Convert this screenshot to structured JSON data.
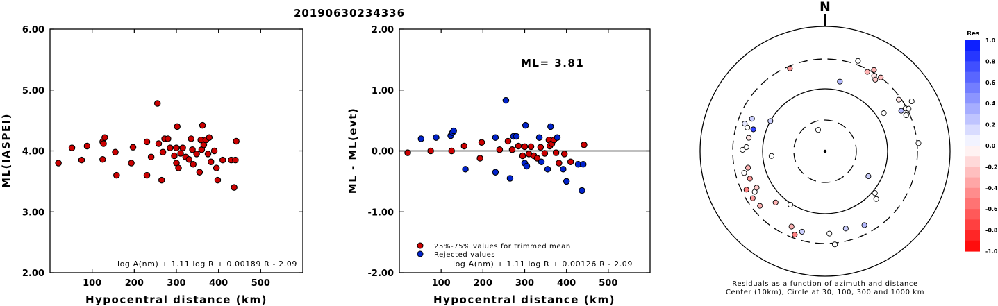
{
  "title": "20190630234336",
  "colors": {
    "accepted": "#cc0000",
    "rejected": "#0022cc"
  },
  "chart_data": [
    {
      "id": "left",
      "type": "scatter",
      "title": "",
      "xlabel": "Hypocentral distance (km)",
      "ylabel": "ML(IASPEI)",
      "xlim": [
        0,
        600
      ],
      "ylim": [
        2.0,
        6.0
      ],
      "xticks": [
        "100",
        "200",
        "300",
        "400",
        "500"
      ],
      "yticks": [
        "2.00",
        "3.00",
        "4.00",
        "5.00",
        "6.00"
      ],
      "formula": "log A(nm) + 1.11 log R + 0.00189 R - 2.09",
      "points": [
        [
          20,
          3.8
        ],
        [
          52,
          4.05
        ],
        [
          75,
          3.85
        ],
        [
          88,
          4.08
        ],
        [
          125,
          4.15
        ],
        [
          127,
          4.12
        ],
        [
          130,
          4.22
        ],
        [
          125,
          3.86
        ],
        [
          155,
          3.98
        ],
        [
          158,
          3.6
        ],
        [
          193,
          3.8
        ],
        [
          197,
          4.06
        ],
        [
          230,
          3.6
        ],
        [
          230,
          4.15
        ],
        [
          240,
          3.9
        ],
        [
          255,
          4.78
        ],
        [
          258,
          4.12
        ],
        [
          265,
          3.52
        ],
        [
          268,
          3.98
        ],
        [
          272,
          4.2
        ],
        [
          280,
          4.2
        ],
        [
          285,
          4.05
        ],
        [
          295,
          3.92
        ],
        [
          300,
          3.8
        ],
        [
          302,
          4.4
        ],
        [
          300,
          4.05
        ],
        [
          305,
          3.72
        ],
        [
          310,
          3.96
        ],
        [
          315,
          4.05
        ],
        [
          322,
          3.9
        ],
        [
          330,
          3.86
        ],
        [
          335,
          4.2
        ],
        [
          338,
          4.02
        ],
        [
          340,
          3.78
        ],
        [
          348,
          3.95
        ],
        [
          355,
          3.65
        ],
        [
          358,
          4.18
        ],
        [
          360,
          4.02
        ],
        [
          362,
          4.42
        ],
        [
          365,
          4.1
        ],
        [
          370,
          4.18
        ],
        [
          375,
          3.95
        ],
        [
          378,
          4.22
        ],
        [
          382,
          3.82
        ],
        [
          390,
          4.0
        ],
        [
          395,
          3.72
        ],
        [
          398,
          3.52
        ],
        [
          410,
          3.85
        ],
        [
          430,
          3.85
        ],
        [
          437,
          3.4
        ],
        [
          440,
          3.85
        ],
        [
          442,
          4.16
        ]
      ]
    },
    {
      "id": "middle",
      "type": "scatter",
      "title": "",
      "xlabel": "Hypocentral distance (km)",
      "ylabel": "ML - ML(evt)",
      "xlim": [
        0,
        600
      ],
      "ylim": [
        -2.0,
        2.0
      ],
      "xticks": [
        "100",
        "200",
        "300",
        "400",
        "500"
      ],
      "yticks": [
        "-2.00",
        "-1.00",
        "0.00",
        "1.00",
        "2.00"
      ],
      "annotation": "ML= 3.81",
      "formula": "log A(nm) + 1.11 log R + 0.00126 R - 2.09",
      "legend": [
        {
          "label": "25%-75% values for trimmed mean",
          "class": "accepted"
        },
        {
          "label": "Rejected values",
          "class": "rejected"
        }
      ],
      "points": [
        {
          "x": 20,
          "y": -0.03,
          "c": "accepted"
        },
        {
          "x": 52,
          "y": 0.2,
          "c": "rejected"
        },
        {
          "x": 75,
          "y": 0.0,
          "c": "accepted"
        },
        {
          "x": 88,
          "y": 0.22,
          "c": "rejected"
        },
        {
          "x": 123,
          "y": 0.25,
          "c": "rejected"
        },
        {
          "x": 127,
          "y": 0.3,
          "c": "rejected"
        },
        {
          "x": 130,
          "y": 0.33,
          "c": "rejected"
        },
        {
          "x": 125,
          "y": 0.0,
          "c": "accepted"
        },
        {
          "x": 155,
          "y": 0.08,
          "c": "accepted"
        },
        {
          "x": 158,
          "y": -0.3,
          "c": "rejected"
        },
        {
          "x": 193,
          "y": -0.12,
          "c": "accepted"
        },
        {
          "x": 197,
          "y": 0.14,
          "c": "accepted"
        },
        {
          "x": 230,
          "y": -0.35,
          "c": "rejected"
        },
        {
          "x": 230,
          "y": 0.22,
          "c": "rejected"
        },
        {
          "x": 240,
          "y": 0.02,
          "c": "accepted"
        },
        {
          "x": 255,
          "y": 0.83,
          "c": "rejected"
        },
        {
          "x": 260,
          "y": 0.16,
          "c": "accepted"
        },
        {
          "x": 265,
          "y": -0.45,
          "c": "rejected"
        },
        {
          "x": 270,
          "y": 0.02,
          "c": "accepted"
        },
        {
          "x": 273,
          "y": 0.24,
          "c": "rejected"
        },
        {
          "x": 280,
          "y": 0.24,
          "c": "rejected"
        },
        {
          "x": 285,
          "y": 0.08,
          "c": "accepted"
        },
        {
          "x": 295,
          "y": -0.08,
          "c": "accepted"
        },
        {
          "x": 300,
          "y": -0.2,
          "c": "rejected"
        },
        {
          "x": 302,
          "y": 0.42,
          "c": "rejected"
        },
        {
          "x": 300,
          "y": 0.07,
          "c": "accepted"
        },
        {
          "x": 305,
          "y": -0.25,
          "c": "rejected"
        },
        {
          "x": 310,
          "y": -0.05,
          "c": "accepted"
        },
        {
          "x": 315,
          "y": 0.07,
          "c": "accepted"
        },
        {
          "x": 322,
          "y": -0.08,
          "c": "accepted"
        },
        {
          "x": 330,
          "y": -0.12,
          "c": "accepted"
        },
        {
          "x": 335,
          "y": 0.22,
          "c": "rejected"
        },
        {
          "x": 338,
          "y": 0.06,
          "c": "accepted"
        },
        {
          "x": 340,
          "y": -0.18,
          "c": "rejected"
        },
        {
          "x": 348,
          "y": -0.04,
          "c": "accepted"
        },
        {
          "x": 355,
          "y": -0.3,
          "c": "rejected"
        },
        {
          "x": 358,
          "y": 0.18,
          "c": "accepted"
        },
        {
          "x": 360,
          "y": 0.08,
          "c": "accepted"
        },
        {
          "x": 362,
          "y": 0.4,
          "c": "rejected"
        },
        {
          "x": 365,
          "y": 0.12,
          "c": "accepted"
        },
        {
          "x": 370,
          "y": 0.18,
          "c": "accepted"
        },
        {
          "x": 375,
          "y": -0.03,
          "c": "accepted"
        },
        {
          "x": 378,
          "y": 0.22,
          "c": "rejected"
        },
        {
          "x": 382,
          "y": -0.2,
          "c": "accepted"
        },
        {
          "x": 392,
          "y": -0.3,
          "c": "rejected"
        },
        {
          "x": 395,
          "y": -0.05,
          "c": "accepted"
        },
        {
          "x": 400,
          "y": -0.5,
          "c": "rejected"
        },
        {
          "x": 410,
          "y": -0.18,
          "c": "accepted"
        },
        {
          "x": 428,
          "y": -0.22,
          "c": "rejected"
        },
        {
          "x": 437,
          "y": -0.65,
          "c": "rejected"
        },
        {
          "x": 440,
          "y": -0.22,
          "c": "rejected"
        },
        {
          "x": 442,
          "y": 0.1,
          "c": "accepted"
        }
      ]
    },
    {
      "id": "polar",
      "type": "scatter",
      "title": "N",
      "north_label": "N",
      "caption_line1": "Residuals as a function of azimuth and distance",
      "caption_line2": "Center (10km), Circle at 30, 100, 300 and 1000 km",
      "rings_km": [
        10,
        30,
        100,
        300,
        1000
      ],
      "colorbar": {
        "title": "Res",
        "labels": [
          "1.0",
          "0.8",
          "0.6",
          "0.4",
          "0.2",
          "0.0",
          "-0.2",
          "-0.4",
          "-0.6",
          "-0.8",
          "-1.0"
        ]
      },
      "points": [
        {
          "az": 20,
          "r": 0.77,
          "res": 0.0
        },
        {
          "az": 28,
          "r": 0.72,
          "res": -0.3
        },
        {
          "az": 31,
          "r": 0.76,
          "res": -0.3
        },
        {
          "az": 33,
          "r": 0.72,
          "res": -0.1
        },
        {
          "az": 35,
          "r": 0.7,
          "res": -0.2
        },
        {
          "az": 37,
          "r": 0.74,
          "res": -0.25
        },
        {
          "az": 12,
          "r": 0.57,
          "res": 0.3
        },
        {
          "az": 55,
          "r": 0.72,
          "res": -0.1
        },
        {
          "az": 60,
          "r": 0.8,
          "res": 0.0
        },
        {
          "az": 62,
          "r": 0.73,
          "res": 0.0
        },
        {
          "az": 63,
          "r": 0.75,
          "res": 0.0
        },
        {
          "az": 66,
          "r": 0.71,
          "res": 0.0
        },
        {
          "az": 57,
          "r": 0.56,
          "res": 0.0
        },
        {
          "az": 62,
          "r": 0.69,
          "res": 0.3
        },
        {
          "az": 85,
          "r": 0.75,
          "res": 0.0
        },
        {
          "az": 130,
          "r": 0.52,
          "res": 0.0
        },
        {
          "az": 133,
          "r": 0.56,
          "res": 0.0
        },
        {
          "az": 120,
          "r": 0.4,
          "res": 0.2
        },
        {
          "az": 152,
          "r": 0.67,
          "res": 0.3
        },
        {
          "az": 165,
          "r": 0.64,
          "res": 0.2
        },
        {
          "az": 174,
          "r": 0.75,
          "res": 0.0
        },
        {
          "az": 177,
          "r": 0.66,
          "res": 0.0
        },
        {
          "az": 196,
          "r": 0.67,
          "res": 0.2
        },
        {
          "az": 200,
          "r": 0.71,
          "res": 0.5
        },
        {
          "az": 204,
          "r": 0.66,
          "res": -0.3
        },
        {
          "az": 200,
          "r": 0.71,
          "res": -0.5
        },
        {
          "az": 213,
          "r": 0.51,
          "res": 0.0
        },
        {
          "az": 224,
          "r": 0.57,
          "res": -0.3
        },
        {
          "az": 230,
          "r": 0.68,
          "res": -0.3
        },
        {
          "az": 237,
          "r": 0.69,
          "res": -0.4
        },
        {
          "az": 240,
          "r": 0.65,
          "res": 0.0
        },
        {
          "az": 242,
          "r": 0.62,
          "res": -0.2
        },
        {
          "az": 244,
          "r": 0.7,
          "res": -0.5
        },
        {
          "az": 250,
          "r": 0.64,
          "res": -0.4
        },
        {
          "az": 255,
          "r": 0.67,
          "res": 0.0
        },
        {
          "az": 258,
          "r": 0.63,
          "res": -0.3
        },
        {
          "az": 265,
          "r": 0.43,
          "res": 0.0
        },
        {
          "az": 271,
          "r": 0.66,
          "res": 0.0
        },
        {
          "az": 273,
          "r": 0.63,
          "res": 0.0
        },
        {
          "az": 280,
          "r": 0.62,
          "res": -0.1
        },
        {
          "az": 287,
          "r": 0.65,
          "res": 0.0
        },
        {
          "az": 287,
          "r": 0.6,
          "res": 0.8
        },
        {
          "az": 289,
          "r": 0.68,
          "res": 0.1
        },
        {
          "az": 294,
          "r": 0.64,
          "res": 0.2
        },
        {
          "az": 299,
          "r": 0.5,
          "res": 0.2
        },
        {
          "az": 337,
          "r": 0.72,
          "res": -0.4
        },
        {
          "az": 342,
          "r": 0.18,
          "res": 0.0
        }
      ]
    }
  ]
}
